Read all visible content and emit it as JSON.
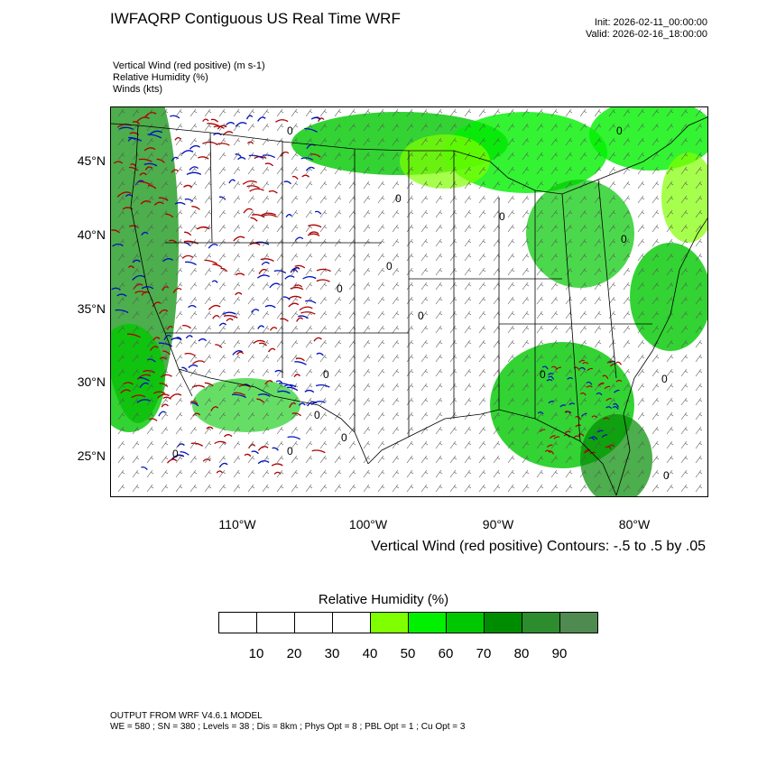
{
  "header": {
    "title": "IWFAQRP Contiguous US Real Time WRF",
    "init": "Init: 2026-02-11_00:00:00",
    "valid": "Valid: 2026-02-16_18:00:00"
  },
  "fields": [
    "Vertical Wind (red positive)   (m s-1)",
    "Relative Humidity   (%)",
    "Winds   (kts)"
  ],
  "axes": {
    "lat_ticks": [
      "45°N",
      "40°N",
      "35°N",
      "30°N",
      "25°N"
    ],
    "lon_ticks": [
      "110°W",
      "100°W",
      "90°W",
      "80°W"
    ]
  },
  "contour_label": "Vertical Wind (red positive) Contours: -.5 to .5 by .05",
  "contour_value_label": "0",
  "colorbar": {
    "title": "Relative Humidity  (%)",
    "labels": [
      "10",
      "20",
      "30",
      "40",
      "50",
      "60",
      "70",
      "80",
      "90"
    ],
    "colors": [
      "#ffffff",
      "#ffffff",
      "#ffffff",
      "#ffffff",
      "#80ff00",
      "#00f000",
      "#00c800",
      "#008c00",
      "#2d8c2d",
      "#4f8a50"
    ]
  },
  "footer": {
    "line1": "OUTPUT FROM WRF V4.6.1 MODEL",
    "line2": "WE = 580 ; SN = 380 ; Levels = 38 ; Dis = 8km ; Phys Opt = 8 ; PBL Opt = 1 ; Cu Opt = 3"
  }
}
